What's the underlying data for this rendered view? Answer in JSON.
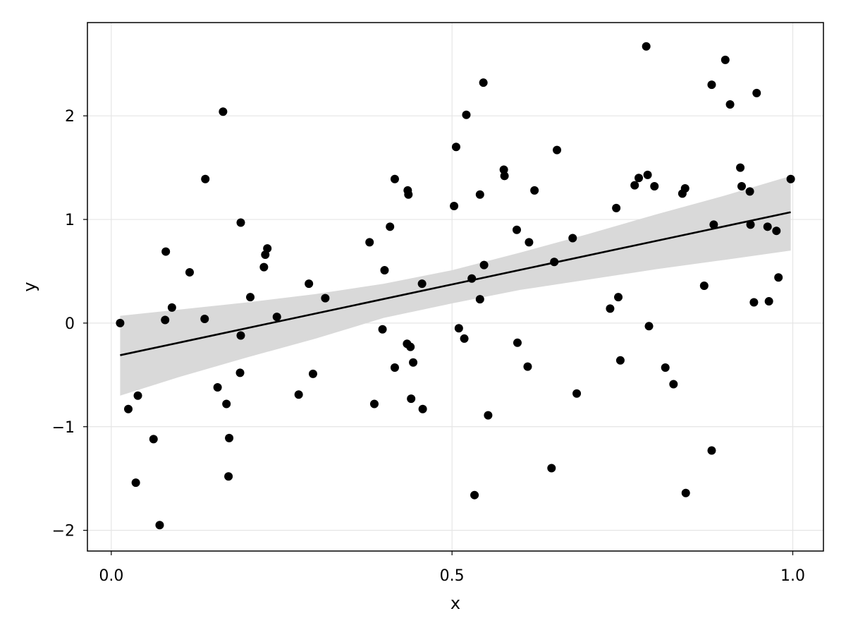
{
  "chart_data": {
    "type": "scatter",
    "title": "",
    "xlabel": "x",
    "ylabel": "y",
    "xlim": [
      -0.035,
      1.045
    ],
    "ylim": [
      -2.2,
      2.9
    ],
    "grid": true,
    "xticks": [
      {
        "value": 0.0,
        "label": "0.0"
      },
      {
        "value": 0.5,
        "label": "0.5"
      },
      {
        "value": 1.0,
        "label": "1.0"
      }
    ],
    "yticks": [
      {
        "value": -2,
        "label": "−2"
      },
      {
        "value": -1,
        "label": "−1"
      },
      {
        "value": 0,
        "label": "0"
      },
      {
        "value": 1,
        "label": "1"
      },
      {
        "value": 2,
        "label": "2"
      }
    ],
    "colors": {
      "points": "#000000",
      "fit_line": "#000000",
      "confidence_band": "#d9d9d9",
      "grid": "#e5e5e5",
      "frame": "#000000"
    },
    "points": [
      [
        0.013,
        0.0
      ],
      [
        0.025,
        -0.83
      ],
      [
        0.036,
        -1.54
      ],
      [
        0.039,
        -0.7
      ],
      [
        0.062,
        -1.12
      ],
      [
        0.071,
        -1.95
      ],
      [
        0.079,
        0.03
      ],
      [
        0.08,
        0.69
      ],
      [
        0.089,
        0.15
      ],
      [
        0.115,
        0.49
      ],
      [
        0.137,
        0.04
      ],
      [
        0.138,
        1.39
      ],
      [
        0.156,
        -0.62
      ],
      [
        0.164,
        2.04
      ],
      [
        0.169,
        -0.78
      ],
      [
        0.172,
        -1.48
      ],
      [
        0.173,
        -1.11
      ],
      [
        0.189,
        -0.48
      ],
      [
        0.19,
        -0.12
      ],
      [
        0.19,
        0.97
      ],
      [
        0.204,
        0.25
      ],
      [
        0.224,
        0.54
      ],
      [
        0.226,
        0.66
      ],
      [
        0.229,
        0.72
      ],
      [
        0.243,
        0.06
      ],
      [
        0.275,
        -0.69
      ],
      [
        0.29,
        0.38
      ],
      [
        0.296,
        -0.49
      ],
      [
        0.314,
        0.24
      ],
      [
        0.379,
        0.78
      ],
      [
        0.386,
        -0.78
      ],
      [
        0.398,
        -0.06
      ],
      [
        0.401,
        0.51
      ],
      [
        0.409,
        0.93
      ],
      [
        0.416,
        1.39
      ],
      [
        0.416,
        -0.43
      ],
      [
        0.434,
        -0.2
      ],
      [
        0.435,
        1.28
      ],
      [
        0.436,
        1.24
      ],
      [
        0.439,
        -0.23
      ],
      [
        0.44,
        -0.73
      ],
      [
        0.443,
        -0.38
      ],
      [
        0.456,
        0.38
      ],
      [
        0.457,
        -0.83
      ],
      [
        0.503,
        1.13
      ],
      [
        0.506,
        1.7
      ],
      [
        0.51,
        -0.05
      ],
      [
        0.518,
        -0.15
      ],
      [
        0.521,
        2.01
      ],
      [
        0.529,
        0.43
      ],
      [
        0.533,
        -1.66
      ],
      [
        0.541,
        1.24
      ],
      [
        0.541,
        0.23
      ],
      [
        0.546,
        2.32
      ],
      [
        0.547,
        0.56
      ],
      [
        0.553,
        -0.89
      ],
      [
        0.576,
        1.48
      ],
      [
        0.577,
        1.42
      ],
      [
        0.595,
        0.9
      ],
      [
        0.596,
        -0.19
      ],
      [
        0.611,
        -0.42
      ],
      [
        0.613,
        0.78
      ],
      [
        0.621,
        1.28
      ],
      [
        0.646,
        -1.4
      ],
      [
        0.65,
        0.59
      ],
      [
        0.654,
        1.67
      ],
      [
        0.677,
        0.82
      ],
      [
        0.683,
        -0.68
      ],
      [
        0.732,
        0.14
      ],
      [
        0.741,
        1.11
      ],
      [
        0.744,
        0.25
      ],
      [
        0.747,
        -0.36
      ],
      [
        0.768,
        1.33
      ],
      [
        0.774,
        1.4
      ],
      [
        0.785,
        2.67
      ],
      [
        0.787,
        1.43
      ],
      [
        0.789,
        -0.03
      ],
      [
        0.797,
        1.32
      ],
      [
        0.813,
        -0.43
      ],
      [
        0.825,
        -0.59
      ],
      [
        0.838,
        1.25
      ],
      [
        0.842,
        1.3
      ],
      [
        0.843,
        -1.64
      ],
      [
        0.87,
        0.36
      ],
      [
        0.881,
        2.3
      ],
      [
        0.881,
        -1.23
      ],
      [
        0.884,
        0.95
      ],
      [
        0.901,
        2.54
      ],
      [
        0.908,
        2.11
      ],
      [
        0.923,
        1.5
      ],
      [
        0.925,
        1.32
      ],
      [
        0.937,
        1.27
      ],
      [
        0.938,
        0.95
      ],
      [
        0.943,
        0.2
      ],
      [
        0.947,
        2.22
      ],
      [
        0.963,
        0.93
      ],
      [
        0.965,
        0.21
      ],
      [
        0.976,
        0.89
      ],
      [
        0.979,
        0.44
      ],
      [
        0.997,
        1.39
      ]
    ],
    "fit_line": [
      [
        0.013,
        -0.31
      ],
      [
        0.997,
        1.07
      ]
    ],
    "confidence_band": {
      "x": [
        0.013,
        0.1,
        0.2,
        0.3,
        0.4,
        0.5,
        0.6,
        0.7,
        0.8,
        0.9,
        0.997
      ],
      "lower": [
        -0.7,
        -0.52,
        -0.33,
        -0.15,
        0.05,
        0.19,
        0.32,
        0.42,
        0.52,
        0.61,
        0.7
      ],
      "upper": [
        0.07,
        0.13,
        0.2,
        0.28,
        0.38,
        0.51,
        0.68,
        0.86,
        1.05,
        1.23,
        1.42
      ]
    }
  }
}
